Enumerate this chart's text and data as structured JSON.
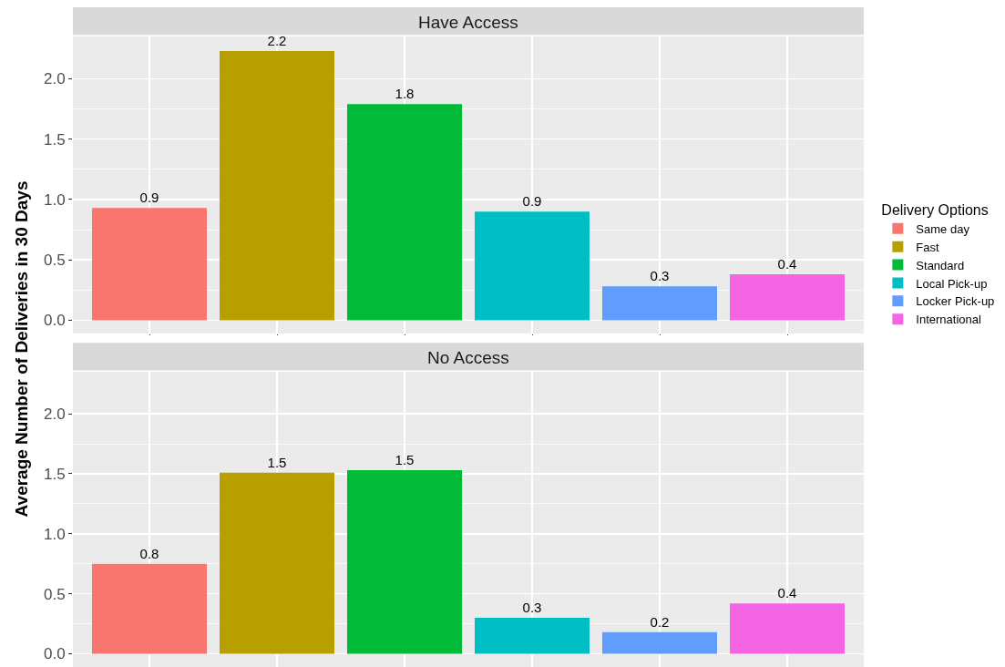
{
  "chart_data": [
    {
      "type": "bar",
      "title": "Have Access",
      "ylabel": "Average Number of Deliveries in 30 Days",
      "legend_title": "Delivery Options",
      "legend": "right",
      "grid": true,
      "categories": [
        null,
        null,
        null,
        null,
        null,
        null
      ],
      "series": [
        {
          "name": "Same day",
          "color": "#f8766d",
          "values": [
            0.93,
            null,
            null,
            null,
            null,
            null
          ],
          "value_labels": [
            "0.9",
            null,
            null,
            null,
            null,
            null
          ]
        },
        {
          "name": "Fast",
          "color": "#b79f00",
          "values": [
            null,
            2.23,
            null,
            null,
            null,
            null
          ],
          "value_labels": [
            null,
            "2.2",
            null,
            null,
            null,
            null
          ]
        },
        {
          "name": "Standard",
          "color": "#00ba38",
          "values": [
            null,
            null,
            1.79,
            null,
            null,
            null
          ],
          "value_labels": [
            null,
            null,
            "1.8",
            null,
            null,
            null
          ]
        },
        {
          "name": "Local Pick-up",
          "color": "#00bfc4",
          "values": [
            null,
            null,
            null,
            0.9,
            null,
            null
          ],
          "value_labels": [
            null,
            null,
            null,
            "0.9",
            null,
            null
          ]
        },
        {
          "name": "Locker Pick-up",
          "color": "#619cff",
          "values": [
            null,
            null,
            null,
            null,
            0.28,
            null
          ],
          "value_labels": [
            null,
            null,
            null,
            null,
            "0.3",
            null
          ]
        },
        {
          "name": "International",
          "color": "#f564e3",
          "values": [
            null,
            null,
            null,
            null,
            null,
            0.38
          ],
          "value_labels": [
            null,
            null,
            null,
            null,
            null,
            "0.4"
          ]
        }
      ],
      "ylim": [
        -0.11,
        2.35
      ],
      "yticks": [
        {
          "value": 0,
          "label": "0.0"
        },
        {
          "value": 0.5,
          "label": "0.5"
        },
        {
          "value": 1,
          "label": "1.0"
        },
        {
          "value": 1.5,
          "label": "1.5"
        },
        {
          "value": 2,
          "label": "2.0"
        }
      ]
    },
    {
      "type": "bar",
      "title": "No Access",
      "legend": false,
      "grid": true,
      "categories": [
        null,
        null,
        null,
        null,
        null,
        null
      ],
      "series": [
        {
          "color": "#f8766d",
          "values": [
            0.75,
            null,
            null,
            null,
            null,
            null
          ],
          "value_labels": [
            "0.8",
            null,
            null,
            null,
            null,
            null
          ]
        },
        {
          "color": "#b79f00",
          "values": [
            null,
            1.51,
            null,
            null,
            null,
            null
          ],
          "value_labels": [
            null,
            "1.5",
            null,
            null,
            null,
            null
          ]
        },
        {
          "color": "#00ba38",
          "values": [
            null,
            null,
            1.53,
            null,
            null,
            null
          ],
          "value_labels": [
            null,
            null,
            "1.5",
            null,
            null,
            null
          ]
        },
        {
          "color": "#00bfc4",
          "values": [
            null,
            null,
            null,
            0.3,
            null,
            null
          ],
          "value_labels": [
            null,
            null,
            null,
            "0.3",
            null,
            null
          ]
        },
        {
          "color": "#619cff",
          "values": [
            null,
            null,
            null,
            null,
            0.18,
            null
          ],
          "value_labels": [
            null,
            null,
            null,
            null,
            "0.2",
            null
          ]
        },
        {
          "color": "#f564e3",
          "values": [
            null,
            null,
            null,
            null,
            null,
            0.42
          ],
          "value_labels": [
            null,
            null,
            null,
            null,
            null,
            "0.4"
          ]
        }
      ],
      "ylim": [
        -0.11,
        2.35
      ],
      "yticks": [
        {
          "value": 0,
          "label": "0.0"
        },
        {
          "value": 0.5,
          "label": "0.5"
        },
        {
          "value": 1,
          "label": "1.0"
        },
        {
          "value": 1.5,
          "label": "1.5"
        },
        {
          "value": 2,
          "label": "2.0"
        }
      ]
    }
  ]
}
